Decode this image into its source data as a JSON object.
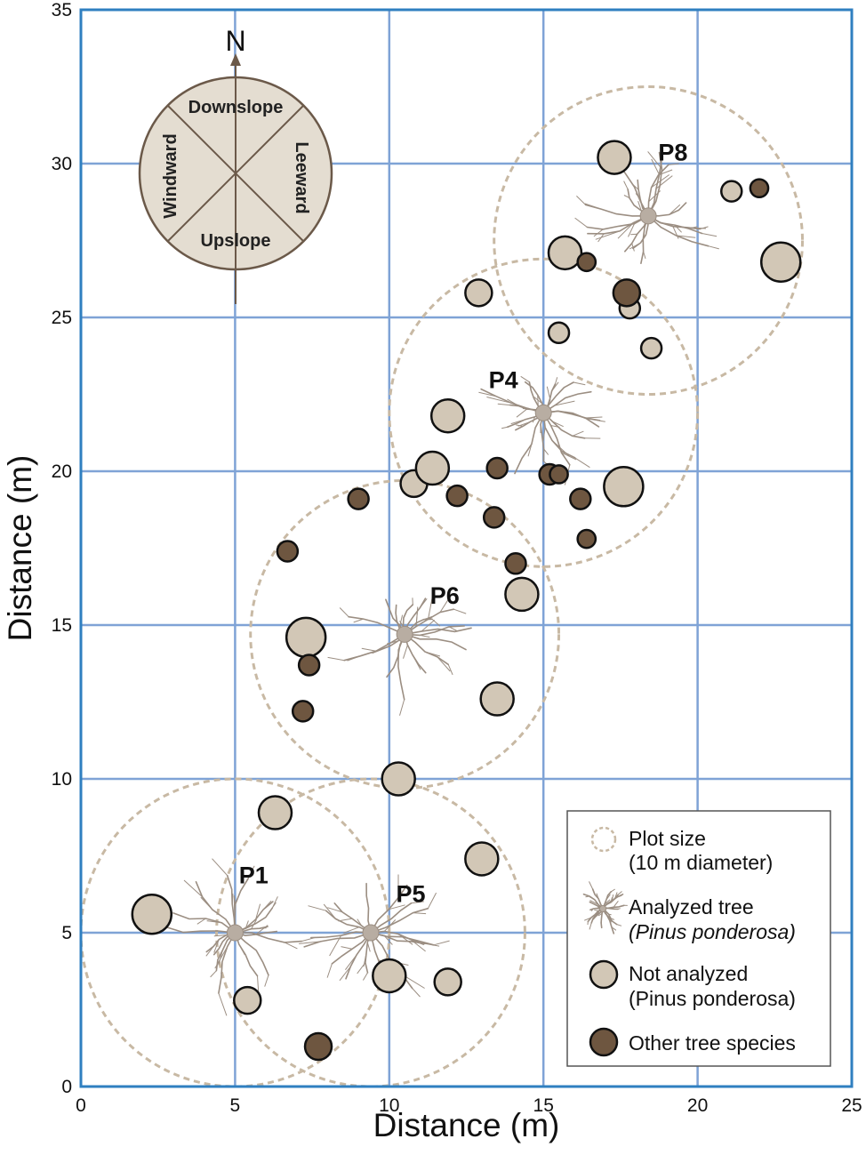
{
  "chart_data": {
    "type": "scatter",
    "xlabel": "Distance (m)",
    "ylabel": "Distance (m)",
    "xlim": [
      0,
      25
    ],
    "ylim": [
      0,
      35
    ],
    "xticks": [
      0,
      5,
      10,
      15,
      20,
      25
    ],
    "yticks": [
      0,
      5,
      10,
      15,
      20,
      25,
      30,
      35
    ],
    "grid": true,
    "plots": [
      {
        "name": "P1",
        "center": [
          5,
          5
        ],
        "diameter": 10
      },
      {
        "name": "P5",
        "center": [
          9.4,
          5
        ],
        "diameter": 10
      },
      {
        "name": "P6",
        "center": [
          10.5,
          14.7
        ],
        "diameter": 10
      },
      {
        "name": "P4",
        "center": [
          15,
          21.9
        ],
        "diameter": 10
      },
      {
        "name": "P8",
        "center": [
          18.4,
          27.5
        ],
        "diameter": 10
      }
    ],
    "analyzed_trees": [
      {
        "plot": "P1",
        "x": 5,
        "y": 5
      },
      {
        "plot": "P5",
        "x": 9.4,
        "y": 5
      },
      {
        "plot": "P6",
        "x": 10.5,
        "y": 14.7
      },
      {
        "plot": "P4",
        "x": 15,
        "y": 21.9
      },
      {
        "plot": "P8",
        "x": 18.4,
        "y": 28.3
      }
    ],
    "not_analyzed_trees": [
      {
        "x": 2.3,
        "y": 5.6,
        "size": 2
      },
      {
        "x": 5.4,
        "y": 2.8,
        "size": 1
      },
      {
        "x": 6.3,
        "y": 8.9,
        "size": 1.5
      },
      {
        "x": 10,
        "y": 3.6,
        "size": 1.5
      },
      {
        "x": 10.3,
        "y": 10,
        "size": 1.5
      },
      {
        "x": 11.9,
        "y": 3.4,
        "size": 1
      },
      {
        "x": 13,
        "y": 7.4,
        "size": 1.5
      },
      {
        "x": 7.3,
        "y": 14.6,
        "size": 2
      },
      {
        "x": 13.5,
        "y": 12.6,
        "size": 1.5
      },
      {
        "x": 14.3,
        "y": 16,
        "size": 1.5
      },
      {
        "x": 10.8,
        "y": 19.6,
        "size": 1
      },
      {
        "x": 11.4,
        "y": 20.1,
        "size": 1.5
      },
      {
        "x": 11.9,
        "y": 21.8,
        "size": 1.5
      },
      {
        "x": 12.9,
        "y": 25.8,
        "size": 1
      },
      {
        "x": 15.5,
        "y": 24.5,
        "size": 0.5
      },
      {
        "x": 17.6,
        "y": 19.5,
        "size": 2
      },
      {
        "x": 17.3,
        "y": 30.2,
        "size": 1.5
      },
      {
        "x": 15.7,
        "y": 27.1,
        "size": 1.5
      },
      {
        "x": 17.8,
        "y": 25.3,
        "size": 0.5
      },
      {
        "x": 18.5,
        "y": 24,
        "size": 0.5
      },
      {
        "x": 21.1,
        "y": 29.1,
        "size": 0.5
      },
      {
        "x": 22.7,
        "y": 26.8,
        "size": 2
      }
    ],
    "other_species_trees": [
      {
        "x": 7.7,
        "y": 1.3,
        "size": 1
      },
      {
        "x": 6.7,
        "y": 17.4,
        "size": 0.5
      },
      {
        "x": 7.4,
        "y": 13.7,
        "size": 0.5
      },
      {
        "x": 7.2,
        "y": 12.2,
        "size": 0.5
      },
      {
        "x": 9,
        "y": 19.1,
        "size": 0.5
      },
      {
        "x": 12.2,
        "y": 19.2,
        "size": 0.5
      },
      {
        "x": 13.4,
        "y": 18.5,
        "size": 0.5
      },
      {
        "x": 13.5,
        "y": 20.1,
        "size": 0.5
      },
      {
        "x": 14.1,
        "y": 17,
        "size": 0.5
      },
      {
        "x": 15.2,
        "y": 19.9,
        "size": 0.5
      },
      {
        "x": 15.5,
        "y": 19.9,
        "size": 0.3
      },
      {
        "x": 16.2,
        "y": 19.1,
        "size": 0.5
      },
      {
        "x": 16.4,
        "y": 17.8,
        "size": 0.3
      },
      {
        "x": 16.4,
        "y": 26.8,
        "size": 0.3
      },
      {
        "x": 17.7,
        "y": 25.8,
        "size": 1
      },
      {
        "x": 22,
        "y": 29.2,
        "size": 0.3
      }
    ]
  },
  "compass": {
    "north": "N",
    "sectors": [
      "Downslope",
      "Leeward",
      "Upslope",
      "Windward"
    ]
  },
  "legend": {
    "plot_size": [
      "Plot size",
      "(10 m diameter)"
    ],
    "analyzed_tree": [
      "Analyzed tree",
      "(Pinus ponderosa)"
    ],
    "not_analyzed": [
      "Not analyzed",
      "(Pinus ponderosa)"
    ],
    "other_species": [
      "Other tree species"
    ]
  },
  "colors": {
    "grid": "#7fa3d6",
    "frame": "#2f7fc0",
    "plot_circle": "#c8b9a4",
    "not_analyzed_fill": "#d2c7b6",
    "other_species_fill": "#6e5640",
    "root": "#9b8e82",
    "compass_fill": "#e4ddd1",
    "compass_stroke": "#6b5949"
  }
}
